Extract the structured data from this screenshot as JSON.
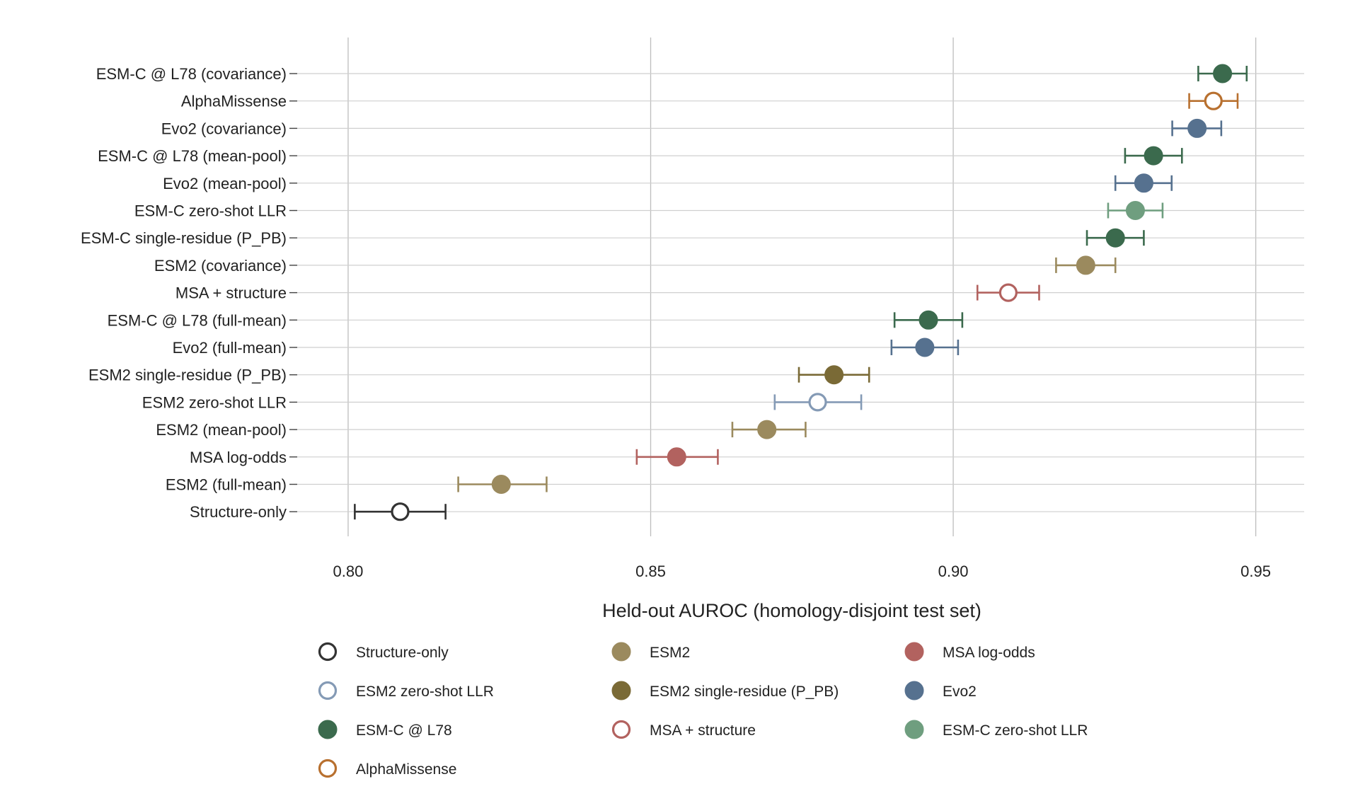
{
  "chart_data": {
    "type": "scatter",
    "subtype": "dot-and-whisker",
    "title": "",
    "xlabel": "Held-out AUROC (homology-disjoint test set)",
    "ylabel": "",
    "xlim": [
      0.791,
      0.958
    ],
    "xticks": [
      0.8,
      0.85,
      0.9,
      0.95
    ],
    "xtick_labels": [
      "0.80",
      "0.85",
      "0.90",
      "0.95"
    ],
    "grid": true,
    "legend_position": "bottom",
    "groups": [
      {
        "key": "structure",
        "name": "Structure-only",
        "color": "#333333",
        "marker": "open"
      },
      {
        "key": "esm2",
        "name": "ESM2",
        "color": "#9b8a5e",
        "marker": "filled"
      },
      {
        "key": "msa",
        "name": "MSA log-odds",
        "color": "#b2625f",
        "marker": "filled"
      },
      {
        "key": "esm2zs",
        "name": "ESM2 zero-shot LLR",
        "color": "#849ab5",
        "marker": "open"
      },
      {
        "key": "esm2sr",
        "name": "ESM2 single-residue (P_PB)",
        "color": "#7a6a36",
        "marker": "filled"
      },
      {
        "key": "evo2",
        "name": "Evo2",
        "color": "#56718f",
        "marker": "filled"
      },
      {
        "key": "esmc",
        "name": "ESM-C @ L78",
        "color": "#3b6a4d",
        "marker": "filled"
      },
      {
        "key": "msastruct",
        "name": "MSA + structure",
        "color": "#b2625f",
        "marker": "open"
      },
      {
        "key": "esmczs",
        "name": "ESM-C zero-shot LLR",
        "color": "#6f9e7f",
        "marker": "filled"
      },
      {
        "key": "alphamissense",
        "name": "AlphaMissense",
        "color": "#b8702f",
        "marker": "open"
      }
    ],
    "categories": [
      "ESM-C @ L78 (covariance)",
      "AlphaMissense",
      "Evo2 (covariance)",
      "ESM-C @ L78 (mean-pool)",
      "Evo2 (mean-pool)",
      "ESM-C zero-shot LLR",
      "ESM-C single-residue (P_PB)",
      "ESM2 (covariance)",
      "MSA + structure",
      "ESM-C @ L78 (full-mean)",
      "Evo2 (full-mean)",
      "ESM2 single-residue (P_PB)",
      "ESM2 zero-shot LLR",
      "ESM2 (mean-pool)",
      "MSA log-odds",
      "ESM2 (full-mean)",
      "Structure-only"
    ],
    "points": [
      {
        "label": "ESM-C @ L78 (covariance)",
        "group": "esmc",
        "value": 0.9445,
        "lo": 0.9405,
        "hi": 0.9485
      },
      {
        "label": "AlphaMissense",
        "group": "alphamissense",
        "value": 0.943,
        "lo": 0.939,
        "hi": 0.947
      },
      {
        "label": "Evo2 (covariance)",
        "group": "evo2",
        "value": 0.9403,
        "lo": 0.9362,
        "hi": 0.9443
      },
      {
        "label": "ESM-C @ L78 (mean-pool)",
        "group": "esmc",
        "value": 0.9331,
        "lo": 0.9284,
        "hi": 0.9378
      },
      {
        "label": "Evo2 (mean-pool)",
        "group": "evo2",
        "value": 0.9315,
        "lo": 0.9268,
        "hi": 0.9361
      },
      {
        "label": "ESM-C zero-shot LLR",
        "group": "esmczs",
        "value": 0.9301,
        "lo": 0.9256,
        "hi": 0.9346
      },
      {
        "label": "ESM-C single-residue (P_PB)",
        "group": "esmc",
        "value": 0.9268,
        "lo": 0.9221,
        "hi": 0.9315
      },
      {
        "label": "ESM2 (covariance)",
        "group": "esm2",
        "value": 0.9219,
        "lo": 0.917,
        "hi": 0.9268
      },
      {
        "label": "MSA + structure",
        "group": "msastruct",
        "value": 0.9091,
        "lo": 0.904,
        "hi": 0.9142
      },
      {
        "label": "ESM-C @ L78 (full-mean)",
        "group": "esmc",
        "value": 0.8959,
        "lo": 0.8903,
        "hi": 0.9015
      },
      {
        "label": "Evo2 (full-mean)",
        "group": "evo2",
        "value": 0.8953,
        "lo": 0.8898,
        "hi": 0.9008
      },
      {
        "label": "ESM2 single-residue (P_PB)",
        "group": "esm2sr",
        "value": 0.8803,
        "lo": 0.8745,
        "hi": 0.8861
      },
      {
        "label": "ESM2 zero-shot LLR",
        "group": "esm2zs",
        "value": 0.8776,
        "lo": 0.8705,
        "hi": 0.8848
      },
      {
        "label": "ESM2 (mean-pool)",
        "group": "esm2",
        "value": 0.8692,
        "lo": 0.8635,
        "hi": 0.8756
      },
      {
        "label": "MSA log-odds",
        "group": "msa",
        "value": 0.8543,
        "lo": 0.8477,
        "hi": 0.8611
      },
      {
        "label": "ESM2 (full-mean)",
        "group": "esm2",
        "value": 0.8253,
        "lo": 0.8182,
        "hi": 0.8328
      },
      {
        "label": "Structure-only",
        "group": "structure",
        "value": 0.8086,
        "lo": 0.8011,
        "hi": 0.8161
      }
    ]
  }
}
